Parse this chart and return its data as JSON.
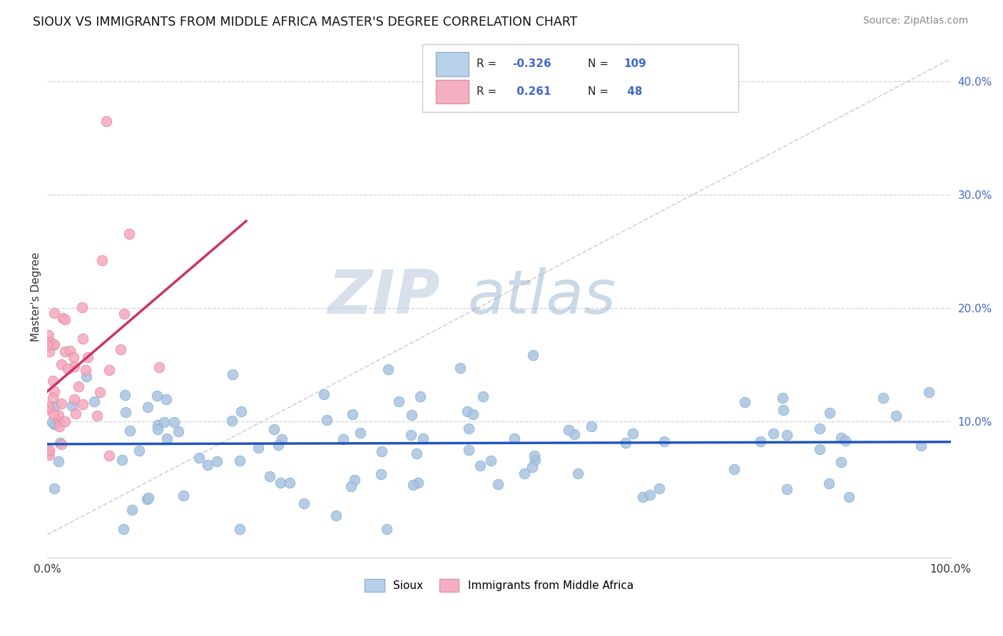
{
  "title": "SIOUX VS IMMIGRANTS FROM MIDDLE AFRICA MASTER'S DEGREE CORRELATION CHART",
  "source": "Source: ZipAtlas.com",
  "ylabel": "Master's Degree",
  "xlim": [
    0.0,
    1.0
  ],
  "ylim": [
    -0.02,
    0.44
  ],
  "plot_ylim": [
    0.0,
    0.42
  ],
  "blue_color": "#aac4e0",
  "blue_edge": "#7aaacf",
  "pink_color": "#f4a8bc",
  "pink_edge": "#e080a0",
  "blue_line_color": "#2255bb",
  "pink_line_color": "#cc3366",
  "grid_color": "#c8c8d8",
  "watermark_color": "#ccd8e8",
  "background_color": "#ffffff",
  "legend_border": "#cccccc",
  "title_color": "#111111",
  "source_color": "#888888",
  "tick_color": "#4466cc",
  "watermark": "ZIPatlas",
  "blue_R": "-0.326",
  "blue_N": "109",
  "pink_R": "0.261",
  "pink_N": "48"
}
